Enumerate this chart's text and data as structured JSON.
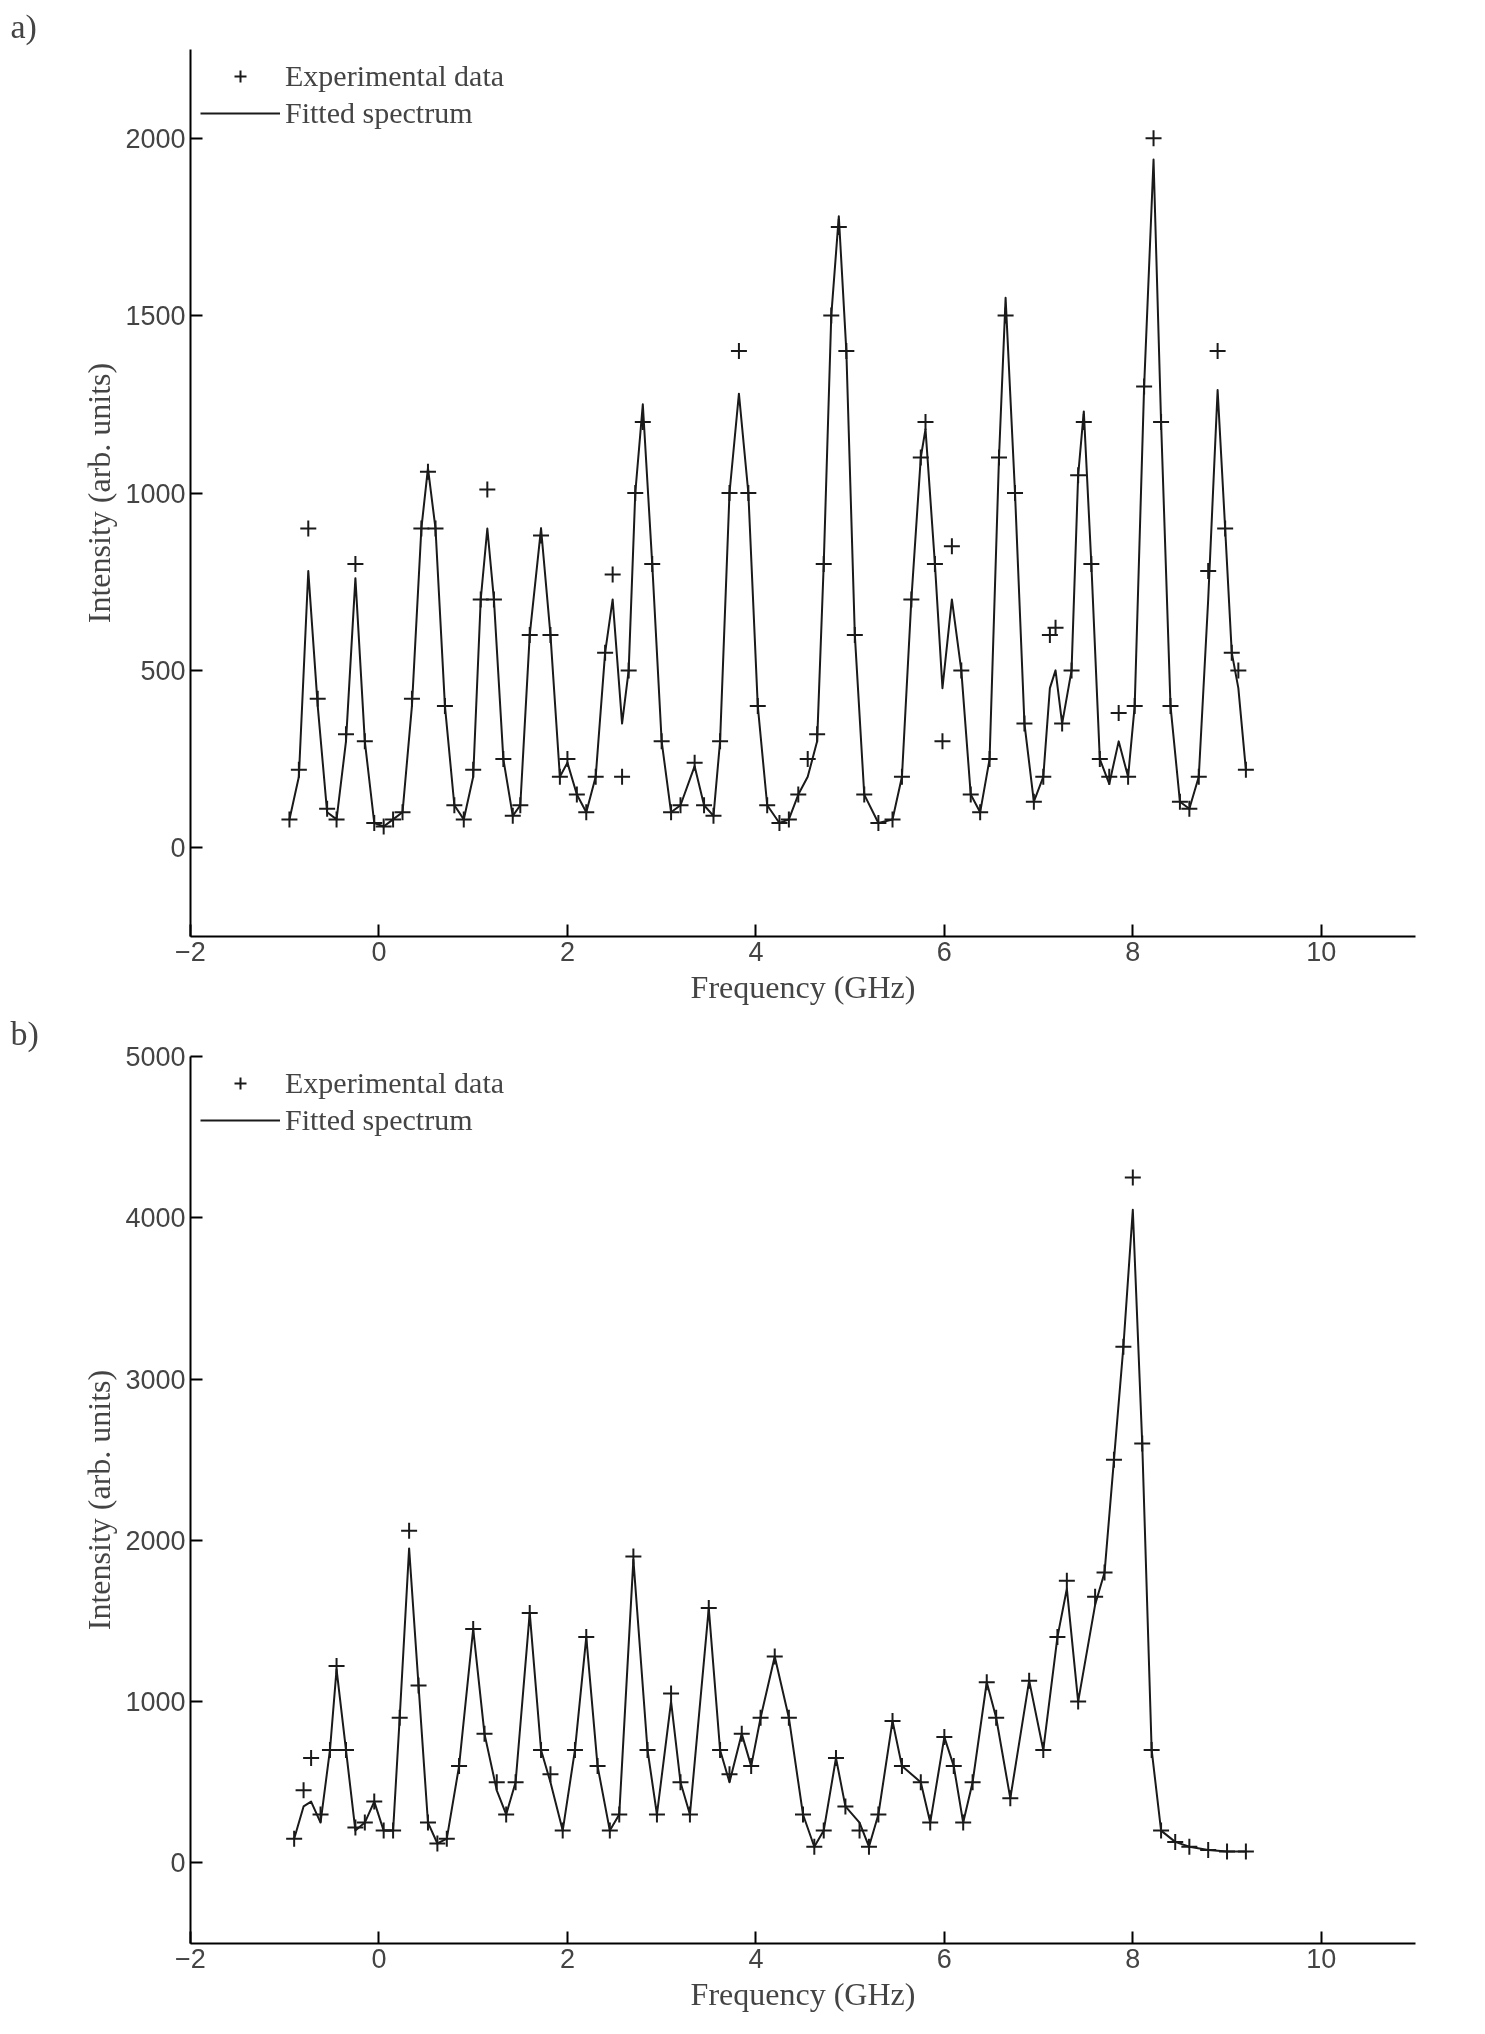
{
  "chart_data": [
    {
      "type": "line",
      "title": "a)",
      "xlabel": "Frequency (GHz)",
      "ylabel": "Intensity (arb. units)",
      "xlim": [
        -2,
        11
      ],
      "ylim": [
        -250,
        2250
      ],
      "xticks": [
        -2,
        0,
        2,
        4,
        6,
        8,
        10
      ],
      "yticks": [
        0,
        500,
        1000,
        1500,
        2000
      ],
      "grid": false,
      "legend": "top left",
      "series": [
        {
          "name": "Experimental data",
          "type": "scatter",
          "marker": "cross",
          "color": "#1a1a1a",
          "x": [
            -0.95,
            -0.85,
            -0.75,
            -0.65,
            -0.55,
            -0.45,
            -0.35,
            -0.25,
            -0.15,
            -0.05,
            0.05,
            0.15,
            0.25,
            0.35,
            0.45,
            0.52,
            0.6,
            0.7,
            0.8,
            0.9,
            1.0,
            1.08,
            1.15,
            1.22,
            1.32,
            1.42,
            1.5,
            1.6,
            1.72,
            1.82,
            1.92,
            2.0,
            2.1,
            2.2,
            2.3,
            2.4,
            2.48,
            2.58,
            2.65,
            2.72,
            2.8,
            2.9,
            3.0,
            3.1,
            3.2,
            3.35,
            3.45,
            3.55,
            3.62,
            3.72,
            3.82,
            3.92,
            4.02,
            4.12,
            4.25,
            4.35,
            4.45,
            4.55,
            4.65,
            4.72,
            4.8,
            4.88,
            4.96,
            5.05,
            5.15,
            5.3,
            5.45,
            5.55,
            5.65,
            5.75,
            5.8,
            5.9,
            5.98,
            6.08,
            6.18,
            6.28,
            6.38,
            6.48,
            6.58,
            6.65,
            6.75,
            6.85,
            6.95,
            7.05,
            7.12,
            7.18,
            7.25,
            7.35,
            7.42,
            7.48,
            7.56,
            7.65,
            7.75,
            7.85,
            7.95,
            8.02,
            8.12,
            8.22,
            8.3,
            8.4,
            8.5,
            8.6,
            8.7,
            8.8,
            8.9,
            8.98,
            9.05,
            9.12,
            9.2
          ],
          "values": [
            80,
            220,
            900,
            420,
            110,
            80,
            320,
            800,
            300,
            70,
            60,
            80,
            100,
            420,
            900,
            1060,
            900,
            400,
            120,
            80,
            220,
            700,
            1010,
            700,
            250,
            90,
            120,
            600,
            880,
            600,
            200,
            250,
            150,
            100,
            200,
            550,
            770,
            200,
            500,
            1000,
            1200,
            800,
            300,
            100,
            120,
            240,
            120,
            90,
            300,
            1000,
            1400,
            1000,
            400,
            120,
            70,
            80,
            150,
            250,
            320,
            800,
            1500,
            1750,
            1400,
            600,
            150,
            70,
            80,
            200,
            700,
            1100,
            1200,
            800,
            300,
            850,
            500,
            150,
            100,
            250,
            1100,
            1500,
            1000,
            350,
            130,
            200,
            600,
            620,
            350,
            500,
            1050,
            1200,
            800,
            250,
            200,
            380,
            200,
            400,
            1300,
            2000,
            1200,
            400,
            130,
            110,
            200,
            780,
            1400,
            900,
            550,
            500,
            220
          ]
        },
        {
          "name": "Fitted spectrum",
          "line_style": "solid",
          "color": "#1a1a1a",
          "x": [
            -0.95,
            -0.85,
            -0.75,
            -0.65,
            -0.55,
            -0.45,
            -0.35,
            -0.25,
            -0.15,
            -0.05,
            0.05,
            0.15,
            0.25,
            0.35,
            0.45,
            0.52,
            0.6,
            0.7,
            0.8,
            0.9,
            1.0,
            1.08,
            1.15,
            1.22,
            1.32,
            1.42,
            1.5,
            1.6,
            1.72,
            1.82,
            1.92,
            2.0,
            2.1,
            2.2,
            2.3,
            2.4,
            2.48,
            2.58,
            2.65,
            2.72,
            2.8,
            2.9,
            3.0,
            3.1,
            3.2,
            3.35,
            3.45,
            3.55,
            3.62,
            3.72,
            3.82,
            3.92,
            4.02,
            4.12,
            4.25,
            4.35,
            4.45,
            4.55,
            4.65,
            4.72,
            4.8,
            4.88,
            4.96,
            5.05,
            5.15,
            5.3,
            5.45,
            5.55,
            5.65,
            5.75,
            5.8,
            5.9,
            5.98,
            6.08,
            6.18,
            6.28,
            6.38,
            6.48,
            6.58,
            6.65,
            6.75,
            6.85,
            6.95,
            7.05,
            7.12,
            7.18,
            7.25,
            7.35,
            7.42,
            7.48,
            7.56,
            7.65,
            7.75,
            7.85,
            7.95,
            8.02,
            8.12,
            8.22,
            8.3,
            8.4,
            8.5,
            8.6,
            8.7,
            8.8,
            8.9,
            8.98,
            9.05,
            9.12,
            9.2
          ],
          "values": [
            80,
            200,
            780,
            400,
            100,
            80,
            300,
            760,
            300,
            70,
            60,
            80,
            100,
            400,
            900,
            1070,
            900,
            400,
            120,
            80,
            200,
            700,
            900,
            700,
            250,
            90,
            120,
            600,
            900,
            600,
            200,
            240,
            150,
            100,
            200,
            550,
            700,
            350,
            500,
            1000,
            1250,
            800,
            300,
            100,
            120,
            230,
            120,
            90,
            300,
            1000,
            1280,
            1000,
            400,
            120,
            70,
            80,
            150,
            200,
            300,
            800,
            1500,
            1780,
            1400,
            600,
            150,
            70,
            80,
            200,
            700,
            1100,
            1180,
            800,
            450,
            700,
            500,
            150,
            100,
            250,
            1100,
            1550,
            1000,
            350,
            130,
            200,
            450,
            500,
            350,
            500,
            1050,
            1230,
            800,
            250,
            180,
            300,
            200,
            400,
            1300,
            1940,
            1200,
            400,
            130,
            110,
            200,
            700,
            1290,
            900,
            550,
            450,
            220
          ]
        }
      ]
    },
    {
      "type": "line",
      "title": "b)",
      "xlabel": "Frequency (GHz)",
      "ylabel": "Intensity (arb. units)",
      "xlim": [
        -2,
        11
      ],
      "ylim": [
        -500,
        5000
      ],
      "xticks": [
        -2,
        0,
        2,
        4,
        6,
        8,
        10
      ],
      "yticks": [
        0,
        1000,
        2000,
        3000,
        4000,
        5000
      ],
      "grid": false,
      "legend": "top left",
      "series": [
        {
          "name": "Experimental data",
          "type": "scatter",
          "marker": "cross",
          "color": "#1a1a1a",
          "x": [
            -0.9,
            -0.8,
            -0.72,
            -0.62,
            -0.52,
            -0.45,
            -0.35,
            -0.25,
            -0.15,
            -0.05,
            0.05,
            0.15,
            0.22,
            0.32,
            0.42,
            0.52,
            0.62,
            0.72,
            0.85,
            1.0,
            1.12,
            1.25,
            1.35,
            1.45,
            1.6,
            1.72,
            1.82,
            1.95,
            2.08,
            2.2,
            2.32,
            2.45,
            2.55,
            2.7,
            2.85,
            2.95,
            3.1,
            3.2,
            3.3,
            3.5,
            3.62,
            3.72,
            3.85,
            3.95,
            4.05,
            4.2,
            4.35,
            4.5,
            4.62,
            4.72,
            4.85,
            4.95,
            5.1,
            5.2,
            5.3,
            5.45,
            5.55,
            5.75,
            5.85,
            6.0,
            6.1,
            6.2,
            6.3,
            6.45,
            6.55,
            6.7,
            6.9,
            7.05,
            7.2,
            7.3,
            7.42,
            7.6,
            7.7,
            7.8,
            7.9,
            8.0,
            8.1,
            8.2,
            8.3,
            8.45,
            8.6,
            8.8,
            9.0,
            9.2
          ],
          "values": [
            150,
            450,
            650,
            300,
            700,
            1220,
            700,
            220,
            250,
            380,
            200,
            200,
            900,
            2060,
            1100,
            250,
            120,
            150,
            600,
            1450,
            800,
            500,
            300,
            500,
            1550,
            700,
            550,
            200,
            700,
            1400,
            600,
            200,
            300,
            1900,
            700,
            300,
            1050,
            500,
            300,
            1580,
            700,
            550,
            800,
            600,
            900,
            1280,
            900,
            300,
            100,
            200,
            650,
            350,
            200,
            100,
            300,
            880,
            600,
            500,
            250,
            780,
            600,
            250,
            500,
            1120,
            900,
            400,
            1130,
            700,
            1400,
            1750,
            1000,
            1650,
            1800,
            2500,
            3200,
            4250,
            2600,
            700,
            200,
            130,
            100,
            80,
            70,
            70
          ]
        },
        {
          "name": "Fitted spectrum",
          "line_style": "solid",
          "color": "#1a1a1a",
          "x": [
            -0.9,
            -0.8,
            -0.72,
            -0.62,
            -0.52,
            -0.45,
            -0.35,
            -0.25,
            -0.15,
            -0.05,
            0.05,
            0.15,
            0.22,
            0.32,
            0.42,
            0.52,
            0.62,
            0.72,
            0.85,
            1.0,
            1.12,
            1.25,
            1.35,
            1.45,
            1.6,
            1.72,
            1.82,
            1.95,
            2.08,
            2.2,
            2.32,
            2.45,
            2.55,
            2.7,
            2.85,
            2.95,
            3.1,
            3.2,
            3.3,
            3.5,
            3.62,
            3.72,
            3.85,
            3.95,
            4.05,
            4.2,
            4.35,
            4.5,
            4.62,
            4.72,
            4.85,
            4.95,
            5.1,
            5.2,
            5.3,
            5.45,
            5.55,
            5.75,
            5.85,
            6.0,
            6.1,
            6.2,
            6.3,
            6.45,
            6.55,
            6.7,
            6.9,
            7.05,
            7.2,
            7.3,
            7.42,
            7.6,
            7.7,
            7.8,
            7.9,
            8.0,
            8.1,
            8.2,
            8.3,
            8.45,
            8.6,
            8.8,
            9.0,
            9.2
          ],
          "values": [
            150,
            350,
            380,
            250,
            700,
            1200,
            700,
            200,
            250,
            380,
            200,
            200,
            900,
            1950,
            1100,
            250,
            120,
            150,
            600,
            1450,
            800,
            450,
            300,
            500,
            1550,
            700,
            500,
            200,
            700,
            1400,
            600,
            200,
            300,
            1880,
            700,
            300,
            1000,
            500,
            300,
            1580,
            700,
            500,
            800,
            600,
            900,
            1280,
            900,
            300,
            100,
            200,
            650,
            350,
            250,
            100,
            300,
            880,
            600,
            500,
            250,
            780,
            600,
            250,
            500,
            1120,
            900,
            400,
            1130,
            700,
            1400,
            1700,
            1000,
            1600,
            1800,
            2500,
            3200,
            4050,
            2600,
            700,
            200,
            130,
            100,
            80,
            70,
            70
          ]
        }
      ]
    }
  ]
}
